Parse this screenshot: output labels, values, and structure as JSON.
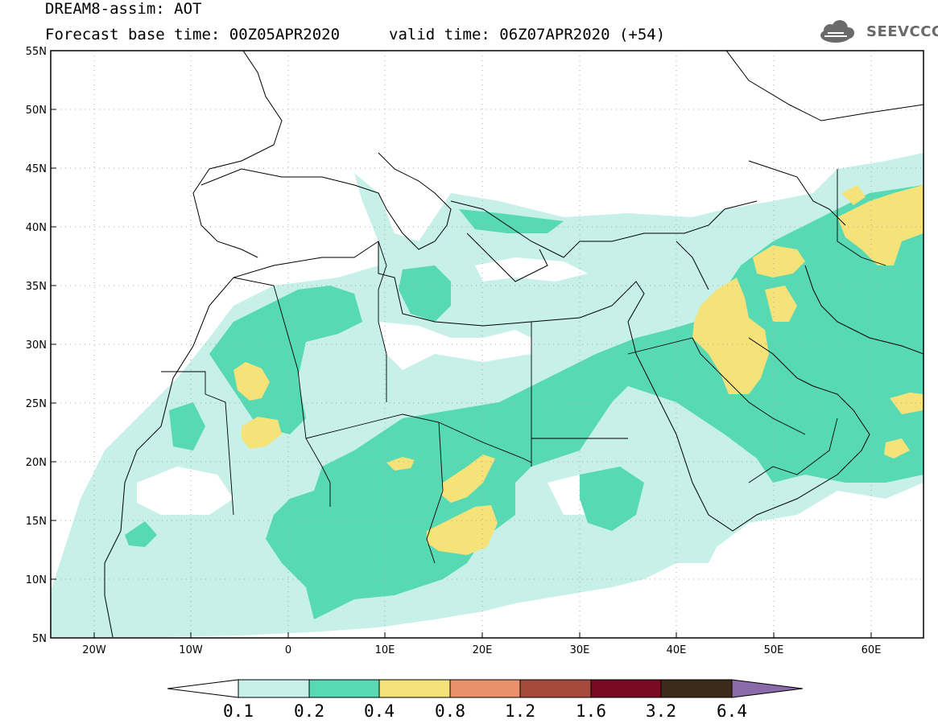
{
  "title": {
    "line1": "DREAM8-assim: AOT",
    "line2": "Forecast base time: 00Z05APR2020",
    "valid": "valid time: 06Z07APR2020 (+54)"
  },
  "logo": {
    "text": "SEEVCCC",
    "icon": "cloud-icon"
  },
  "axes": {
    "lat_labels": [
      "55N",
      "50N",
      "45N",
      "40N",
      "35N",
      "30N",
      "25N",
      "20N",
      "15N",
      "10N",
      "5N"
    ],
    "lon_labels": [
      "20W",
      "10W",
      "0",
      "10E",
      "20E",
      "30E",
      "40E",
      "50E",
      "60E"
    ]
  },
  "colorbar": {
    "labels": [
      "0.1",
      "0.2",
      "0.4",
      "0.8",
      "1.2",
      "1.6",
      "3.2",
      "6.4"
    ],
    "colors": [
      "#ffffff",
      "#c6f0e8",
      "#57d9b4",
      "#f5e37a",
      "#e8916a",
      "#a64b3c",
      "#7a0a23",
      "#3c2a1a",
      "#8a6aa8"
    ]
  },
  "colors": {
    "low": "#c6f0e8",
    "mid": "#57d9b4",
    "high": "#f5e37a",
    "border": "#000000",
    "grid": "#aaaaaa"
  }
}
